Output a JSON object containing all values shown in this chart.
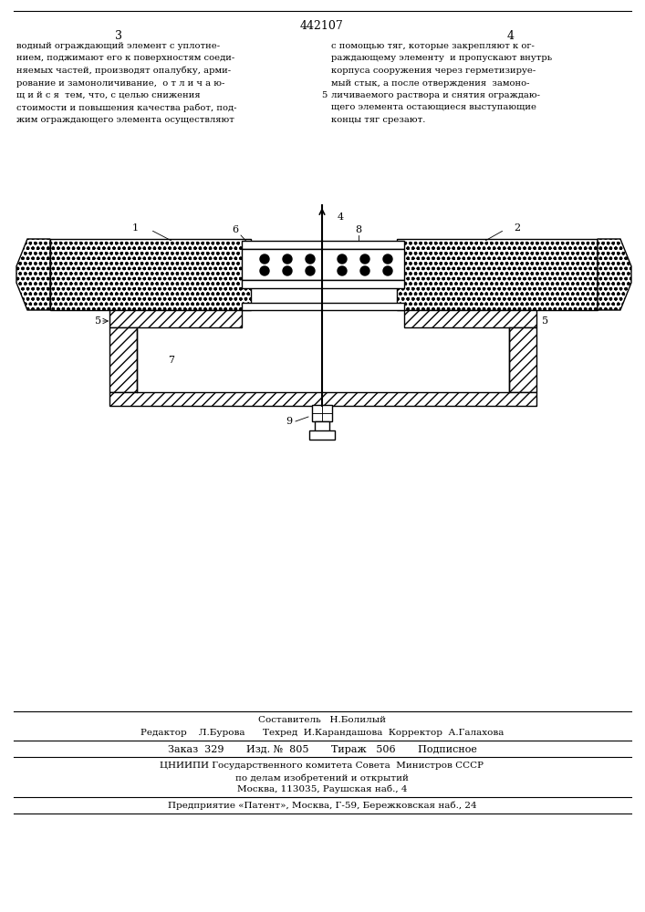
{
  "page_number_center": "442107",
  "page_num_left": "3",
  "page_num_right": "4",
  "text_left": [
    "водный ограждающий элемент с уплотне-",
    "нием, поджимают его к поверхностям соеди-",
    "няемых частей, производят опалубку, арми-",
    "рование и замоноличивание,  о т л и ч а ю-",
    "щ и й с я  тем, что, с целью снижения",
    "стоимости и повышения качества работ, под-",
    "жим ограждающего элемента осуществляют"
  ],
  "text_right_margin5": "5",
  "text_right": [
    "с помощью тяг, которые закрепляют к ог-",
    "раждающему элементу  и пропускают внутрь",
    "корпуса сооружения через герметизируе-",
    "мый стык, а после отверждения  замоно-",
    "личиваемого раствора и снятия ограждаю-",
    "щего элемента остающиеся выступающие",
    "концы тяг срезают."
  ],
  "compositor_line": "Составитель   Н.Болилый",
  "editor_line": "Редактор    Л.Бурова      Техред  И.Карандашова  Корректор  А.Галахова",
  "order_line": "Заказ  329       Изд. №  805       Тираж   506       Подписное",
  "institution_line1": "ЦНИИПИ Государственного комитета Совета  Министров СССР",
  "institution_line2": "по делам изобретений и открытий",
  "institution_line3": "Москва, 113035, Раушская наб., 4",
  "enterprise_line": "Предприятие «Патент», Москва, Г-59, Бережковская наб., 24",
  "bg_color": "#ffffff"
}
